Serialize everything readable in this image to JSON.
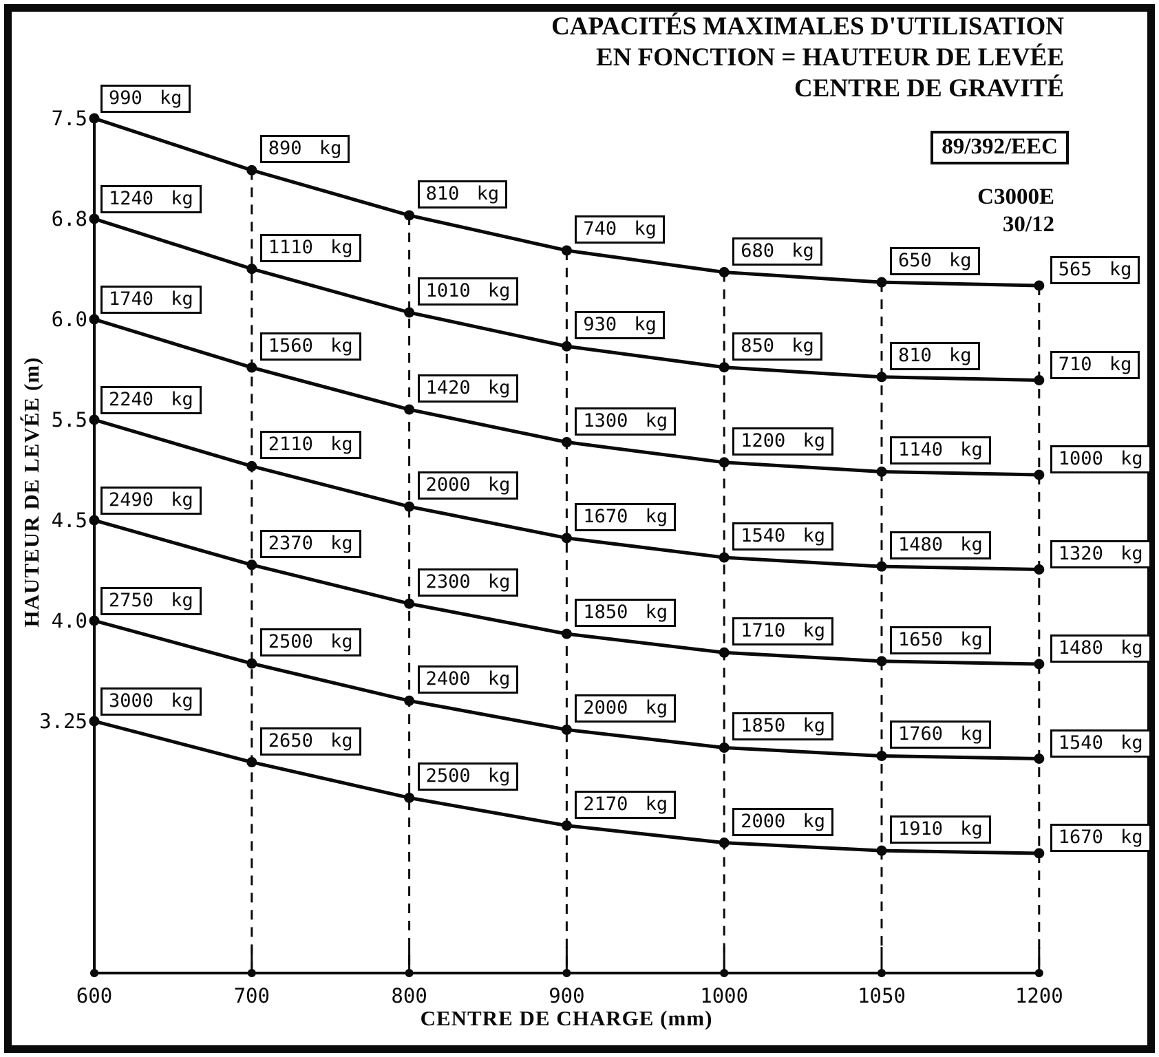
{
  "header": {
    "title_lines": [
      "CAPACITÉS MAXIMALES D'UTILISATION",
      "EN FONCTION = HAUTEUR DE LEVÉE",
      "CENTRE DE GRAVITÉ"
    ],
    "certification": "89/392/EEC",
    "model": "C3000E",
    "model_variant": "30/12"
  },
  "chart_data": {
    "type": "line",
    "title": "CAPACITÉS MAXIMALES D'UTILISATION EN FONCTION = HAUTEUR DE LEVÉE CENTRE DE GRAVITÉ",
    "xlabel": "CENTRE DE CHARGE (mm)",
    "ylabel": "HAUTEUR DE LEVÉE (m)",
    "x_categories": [
      600,
      700,
      800,
      900,
      1000,
      1050,
      1200
    ],
    "x_tick_labels": [
      "600",
      "700",
      "800",
      "900",
      "1000",
      "1050",
      "1200"
    ],
    "y_tick_labels": [
      "7.5",
      "6.8",
      "6.0",
      "5.5",
      "4.5",
      "4.0",
      "3.25"
    ],
    "unit": "kg",
    "grid": "dashed-vertical-gridlines",
    "legend": "none",
    "series": [
      {
        "name": "7.5 m",
        "lift_height_m": 7.5,
        "values_kg": [
          990,
          890,
          810,
          740,
          680,
          650,
          565
        ]
      },
      {
        "name": "6.8 m",
        "lift_height_m": 6.8,
        "values_kg": [
          1240,
          1110,
          1010,
          930,
          850,
          810,
          710
        ]
      },
      {
        "name": "6.0 m",
        "lift_height_m": 6.0,
        "values_kg": [
          1740,
          1560,
          1420,
          1300,
          1200,
          1140,
          1000
        ]
      },
      {
        "name": "5.5 m",
        "lift_height_m": 5.5,
        "values_kg": [
          2240,
          2110,
          2000,
          1670,
          1540,
          1480,
          1320
        ]
      },
      {
        "name": "4.5 m",
        "lift_height_m": 4.5,
        "values_kg": [
          2490,
          2370,
          2300,
          1850,
          1710,
          1650,
          1480
        ]
      },
      {
        "name": "4.0 m",
        "lift_height_m": 4.0,
        "values_kg": [
          2750,
          2500,
          2400,
          2000,
          1850,
          1760,
          1540
        ]
      },
      {
        "name": "3.25 m",
        "lift_height_m": 3.25,
        "values_kg": [
          3000,
          2650,
          2500,
          2170,
          2000,
          1910,
          1670
        ]
      }
    ]
  }
}
